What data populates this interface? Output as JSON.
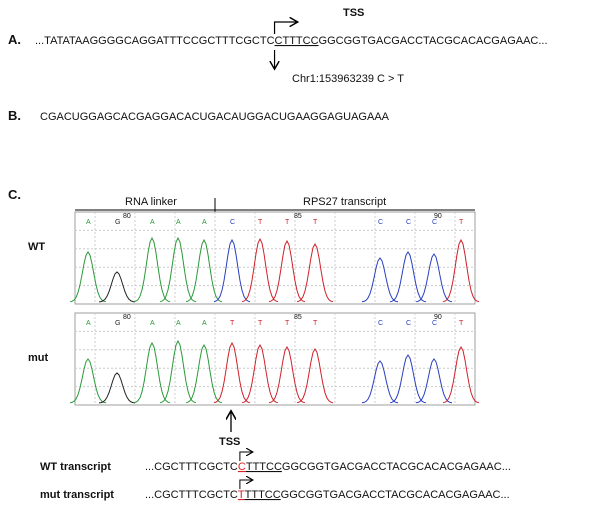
{
  "panel_a": {
    "label": "A.",
    "tss": "TSS",
    "sequence": {
      "prefix": "...TATATAAGGGGCAGGATTTCCGCTTTCGCTC",
      "underlined": "CTTTCC",
      "suffix": "GGCGGTGACGACCTACGCACACGAGAAC..."
    },
    "variant": "Chr1:153963239  C > T"
  },
  "panel_b": {
    "label": "B.",
    "sequence": "CGACUGGAGCACGAGGACACUGACAUGGACUGAAGGAGUAGAAA"
  },
  "panel_c": {
    "label": "C.",
    "rna_linker": "RNA linker",
    "transcript_label": "RPS27 transcript",
    "chromatograms": [
      {
        "label": "WT",
        "bases": [
          "A",
          "G",
          "A",
          "A",
          "A",
          "C",
          "T",
          "T",
          "T",
          "C",
          "C",
          "C",
          "T"
        ],
        "positions": [
          80,
          85,
          90
        ]
      },
      {
        "label": "mut",
        "bases": [
          "A",
          "G",
          "A",
          "A",
          "A",
          "T",
          "T",
          "T",
          "T",
          "C",
          "C",
          "C",
          "T"
        ],
        "positions": [
          80,
          85,
          90
        ]
      }
    ],
    "tss": "TSS",
    "transcripts": [
      {
        "label": "WT transcript",
        "prefix": "...CGCTTTCGCTC",
        "variant": "C",
        "underlined": "TTTCC",
        "suffix": "GGCGGTGACGACCTACGCACACGAGAAC..."
      },
      {
        "label": "mut transcript",
        "prefix": "...CGCTTTCGCTC",
        "variant": "T",
        "underlined": "TTTCC",
        "suffix": "GGCGGTGACGACCTACGCACACGAGAAC..."
      }
    ]
  }
}
